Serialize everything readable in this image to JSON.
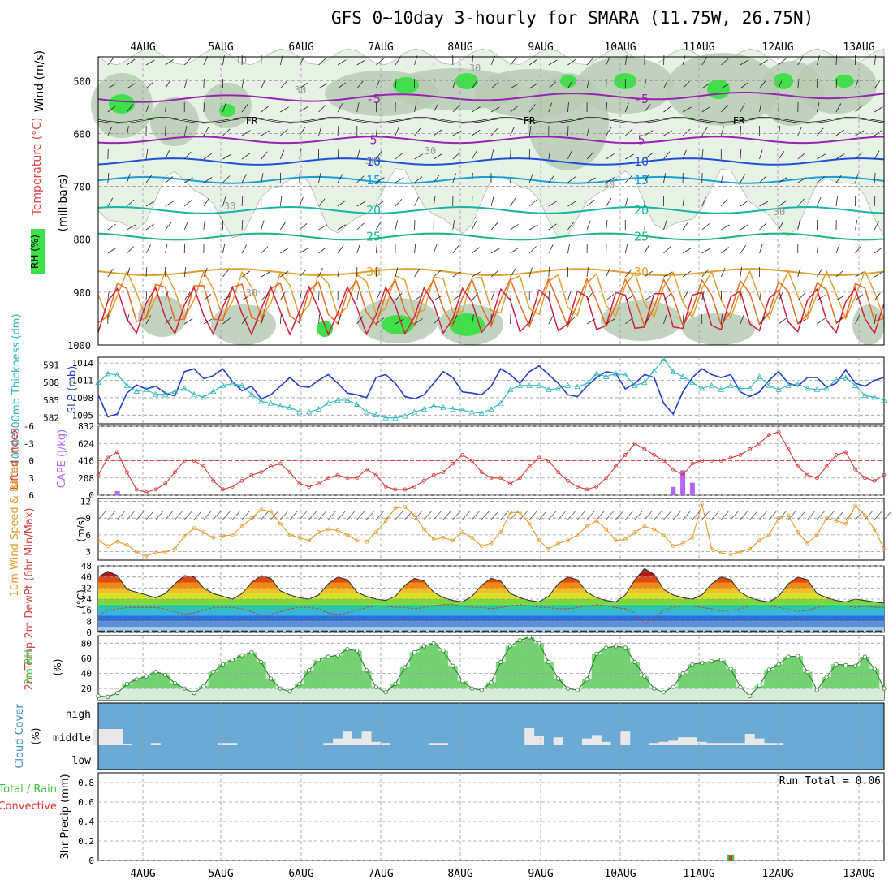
{
  "header": {
    "title": "GFS 0~10day 3-hourly for SMARA (11.75W, 26.75N)"
  },
  "colors": {
    "grid": "#9a9a9a",
    "rh_light": "#e6f2e3",
    "rh_mid": "#b7ccb4",
    "rh_bright": "#3fe04a",
    "slp": "#1f3fc8",
    "thickness": "#2ab5c0",
    "lifted_index": "#d23a3a",
    "cape": "#b266ff",
    "wind_speed": "#e69a2a",
    "cloud": "#6aaad4",
    "cloud_bar": "#e8e8e8",
    "rh2m": "#4ac84a",
    "precip_rain": "#3fbf3f",
    "precip_conv": "#dd3333"
  },
  "chart_data": [
    {
      "id": "upper_air",
      "type": "contour",
      "ylabel": "(millibars)",
      "side_labels": [
        "Wind (m/s)",
        "Temperature (°C)",
        "RH (%)"
      ],
      "yticks": [
        500,
        600,
        700,
        800,
        900,
        1000
      ],
      "ylim": [
        455,
        1000
      ],
      "x_dates": [
        "4AUG",
        "5AUG",
        "6AUG",
        "7AUG",
        "8AUG",
        "9AUG",
        "10AUG",
        "11AUG",
        "12AUG",
        "13AUG"
      ],
      "freezing_label": "FR",
      "temp_levels": [
        {
          "value": -5,
          "label": "-5",
          "color": "#9a22b2",
          "base": 535
        },
        {
          "value": 5,
          "label": "5",
          "color": "#9a22b2",
          "base": 612
        },
        {
          "value": 10,
          "label": "10",
          "color": "#1e4fd8",
          "base": 653
        },
        {
          "value": 15,
          "label": "15",
          "color": "#1aa0d8",
          "base": 688
        },
        {
          "value": 20,
          "label": "20",
          "color": "#17b3a8",
          "base": 745
        },
        {
          "value": 25,
          "label": "25",
          "color": "#18b487",
          "base": 795
        },
        {
          "value": 30,
          "label": "30",
          "color": "#e0a030",
          "base": 862
        }
      ],
      "rh_labels": [
        "10",
        "30",
        "30",
        "30",
        "30",
        "30",
        "30",
        "30",
        "30"
      ]
    },
    {
      "id": "slp_thickness",
      "type": "line",
      "left_axis_label": "1000-500mb Thickness (dm)",
      "right_axis_label": "SLP (mb)",
      "left_ticks": [
        582,
        585,
        588,
        591
      ],
      "left_range": [
        581,
        592.3
      ],
      "right_ticks": [
        1005,
        1008,
        1011,
        1014
      ],
      "right_range": [
        1003.5,
        1015
      ],
      "series": [
        {
          "name": "SLP",
          "values": [
            1008.5,
            1004.7,
            1005.2,
            1008.8,
            1010.2,
            1009.5,
            1010.0,
            1008.8,
            1008.3,
            1012.5,
            1013.0,
            1011.3,
            1011.8,
            1013.0,
            1010.8,
            1009.2,
            1010.0,
            1007.8,
            1008.5,
            1010.0,
            1011.5,
            1010.0,
            1009.8,
            1011.0,
            1012.0,
            1010.5,
            1008.8,
            1008.5,
            1008.0,
            1011.5,
            1012.0,
            1010.5,
            1008.2,
            1007.8,
            1008.5,
            1010.5,
            1012.5,
            1011.5,
            1009.0,
            1008.8,
            1008.5,
            1010.0,
            1013.0,
            1012.0,
            1010.5,
            1012.5,
            1013.5,
            1012.0,
            1010.5,
            1008.5,
            1008.2,
            1010.0,
            1011.5,
            1012.5,
            1012.2,
            1009.5,
            1010.5,
            1012.0,
            1011.5,
            1007.0,
            1005.2,
            1009.0,
            1011.5,
            1013.0,
            1012.0,
            1011.5,
            1012.0,
            1009.0,
            1008.2,
            1009.0,
            1011.0,
            1012.5,
            1010.5,
            1010.0,
            1011.5,
            1011.5,
            1009.8,
            1010.5,
            1012.8,
            1010.5,
            1010.0,
            1011.0,
            1011.5
          ]
        },
        {
          "name": "Thickness",
          "values": [
            588.0,
            589.5,
            589.3,
            587.5,
            586.5,
            586.8,
            586.0,
            586.0,
            586.5,
            587.0,
            586.0,
            585.5,
            586.5,
            587.5,
            587.8,
            587.5,
            586.0,
            584.8,
            584.5,
            584.0,
            583.8,
            583.0,
            583.0,
            583.5,
            584.5,
            585.0,
            585.0,
            584.3,
            583.0,
            582.5,
            582.0,
            582.0,
            582.3,
            583.0,
            583.5,
            584.0,
            583.8,
            583.5,
            583.3,
            583.0,
            582.8,
            583.5,
            584.5,
            586.8,
            587.5,
            587.5,
            587.5,
            586.8,
            587.0,
            587.5,
            587.3,
            587.8,
            589.5,
            589.0,
            589.5,
            589.3,
            587.5,
            588.0,
            590.0,
            592.0,
            589.8,
            589.0,
            588.0,
            587.0,
            587.5,
            586.8,
            587.5,
            587.0,
            587.0,
            589.0,
            587.5,
            586.8,
            587.5,
            587.8,
            587.0,
            586.8,
            587.0,
            588.5,
            588.8,
            587.5,
            585.8,
            585.5,
            585.0
          ]
        }
      ]
    },
    {
      "id": "li_cape",
      "type": "line+bar",
      "left_axis_label": "Lifted Index",
      "right_axis_label": "CAPE (J/kg)",
      "li_ticks": [
        "-6",
        "-3",
        "0",
        "3",
        "6"
      ],
      "li_range": [
        -6,
        6
      ],
      "cape_ticks": [
        "0",
        "208",
        "416",
        "624",
        "832"
      ],
      "cape_range": [
        0,
        832
      ],
      "li_values": [
        2.5,
        -0.5,
        -1.5,
        2.0,
        5.0,
        5.5,
        5.0,
        4.0,
        2.0,
        0.0,
        0.0,
        1.0,
        3.5,
        5.0,
        4.5,
        3.5,
        2.5,
        2.0,
        1.0,
        0.5,
        2.0,
        4.0,
        4.5,
        4.0,
        3.0,
        2.5,
        3.0,
        3.0,
        1.5,
        2.5,
        4.5,
        5.0,
        5.0,
        4.5,
        3.5,
        2.5,
        2.0,
        0.5,
        -1.0,
        0.0,
        2.0,
        3.0,
        3.0,
        4.0,
        3.0,
        1.0,
        -0.5,
        0.0,
        2.0,
        3.5,
        4.5,
        5.0,
        4.5,
        3.0,
        1.0,
        -1.0,
        -3.0,
        -2.0,
        -1.0,
        0.0,
        1.5,
        2.5,
        0.5,
        0.0,
        0.0,
        0.0,
        -0.5,
        -1.0,
        -2.0,
        -3.0,
        -4.5,
        -5.0,
        -2.0,
        1.0,
        2.5,
        3.0,
        1.0,
        -1.0,
        -1.5,
        1.5,
        3.0,
        3.5,
        2.5
      ],
      "cape_values": [
        0,
        0,
        50,
        0,
        0,
        0,
        0,
        0,
        0,
        0,
        0,
        0,
        0,
        0,
        0,
        0,
        0,
        0,
        0,
        0,
        0,
        0,
        0,
        0,
        0,
        0,
        0,
        0,
        0,
        0,
        0,
        0,
        0,
        0,
        0,
        0,
        0,
        0,
        0,
        0,
        0,
        0,
        0,
        0,
        0,
        0,
        0,
        0,
        0,
        0,
        0,
        0,
        0,
        0,
        0,
        0,
        0,
        0,
        0,
        0,
        100,
        300,
        150,
        0,
        0,
        0,
        0,
        0,
        0,
        0,
        0,
        0,
        0,
        0,
        0,
        0,
        0,
        0,
        0,
        0,
        0,
        0,
        0
      ]
    },
    {
      "id": "wind10m",
      "type": "line",
      "left_axis_label": "10m Wind Speed & Barbs",
      "right_axis_label": "(m/s)",
      "ticks": [
        3,
        6,
        9,
        12
      ],
      "range": [
        1.5,
        12.5
      ],
      "values": [
        5.0,
        4.0,
        4.8,
        4.2,
        3.0,
        2.2,
        2.8,
        3.0,
        3.5,
        5.8,
        7.2,
        6.5,
        5.5,
        5.8,
        6.0,
        7.5,
        9.0,
        10.5,
        10.2,
        8.0,
        6.0,
        5.5,
        5.0,
        6.5,
        7.0,
        6.8,
        6.0,
        5.0,
        4.8,
        6.5,
        8.5,
        10.8,
        11.0,
        9.5,
        7.0,
        5.2,
        5.5,
        5.0,
        6.5,
        5.5,
        4.0,
        4.5,
        6.5,
        10.0,
        10.0,
        8.0,
        5.0,
        3.5,
        4.5,
        5.0,
        6.0,
        7.5,
        8.5,
        7.0,
        5.0,
        5.2,
        6.5,
        7.5,
        7.0,
        6.0,
        4.0,
        4.5,
        5.5,
        11.5,
        3.5,
        2.8,
        2.5,
        3.0,
        3.5,
        5.0,
        6.0,
        9.0,
        9.5,
        6.5,
        4.5,
        6.0,
        9.0,
        8.5,
        8.0,
        11.2,
        9.5,
        7.0,
        3.5
      ]
    },
    {
      "id": "temp2m",
      "type": "area",
      "left_axis_label": "2m Temp 2m DewPt (6hr Min/Max)",
      "right_axis_label": "(°C)",
      "ticks": [
        0,
        8,
        16,
        24,
        32,
        40,
        48
      ],
      "range": [
        0,
        48
      ],
      "values": [
        40.0,
        44.0,
        41.0,
        31.0,
        29.0,
        27.0,
        25.0,
        28.0,
        35.0,
        41.0,
        40.0,
        32.0,
        28.0,
        26.0,
        24.0,
        28.0,
        36.0,
        41.0,
        39.0,
        30.0,
        27.0,
        25.0,
        24.0,
        27.0,
        35.0,
        40.0,
        38.0,
        29.0,
        26.0,
        24.0,
        23.0,
        26.0,
        34.0,
        39.0,
        37.0,
        29.0,
        25.0,
        23.0,
        22.0,
        26.0,
        34.0,
        39.0,
        37.0,
        28.0,
        25.0,
        23.0,
        22.0,
        26.0,
        35.0,
        40.0,
        38.0,
        29.0,
        25.0,
        23.0,
        22.0,
        27.0,
        38.0,
        46.0,
        42.0,
        31.0,
        27.0,
        25.0,
        24.0,
        27.0,
        35.0,
        40.0,
        38.0,
        29.0,
        25.0,
        23.0,
        22.0,
        26.0,
        35.0,
        40.0,
        38.0,
        28.0,
        25.0,
        23.0,
        22.0,
        24.0,
        23.0,
        22.0,
        21.0
      ],
      "dewpoint": [
        12.0,
        16.0,
        17.0,
        18.0,
        18.0,
        18.0,
        18.0,
        17.0,
        15.0,
        13.0,
        14.0,
        16.0,
        18.0,
        18.0,
        18.0,
        17.0,
        15.0,
        12.0,
        13.0,
        15.0,
        17.0,
        18.0,
        18.0,
        17.0,
        14.0,
        13.0,
        14.0,
        16.0,
        18.0,
        19.0,
        19.0,
        18.0,
        18.0,
        17.0,
        18.0,
        19.0,
        20.0,
        20.0,
        19.0,
        18.0,
        18.0,
        17.0,
        18.0,
        19.0,
        20.0,
        19.0,
        18.0,
        18.0,
        17.0,
        17.0,
        18.0,
        19.0,
        20.0,
        19.0,
        18.0,
        17.0,
        14.0,
        6.0,
        10.0,
        16.0,
        18.0,
        19.0,
        19.0,
        18.0,
        17.0,
        15.0,
        16.0,
        17.0,
        19.0,
        19.0,
        19.0,
        18.0,
        17.0,
        15.0,
        16.0,
        18.0,
        19.0,
        19.0,
        19.0,
        18.0,
        19.0,
        18.0,
        18.0
      ]
    },
    {
      "id": "rh2m",
      "type": "area",
      "left_axis_label": "2m RH",
      "right_axis_label": "(%)",
      "ticks": [
        20,
        40,
        60,
        80
      ],
      "range": [
        5,
        90
      ],
      "values": [
        10,
        9,
        14,
        26,
        32,
        36,
        42,
        38,
        27,
        20,
        14,
        23,
        42,
        52,
        58,
        64,
        68,
        55,
        33,
        20,
        16,
        26,
        44,
        58,
        62,
        64,
        72,
        70,
        44,
        22,
        15,
        26,
        48,
        68,
        76,
        80,
        70,
        50,
        30,
        20,
        18,
        28,
        55,
        76,
        84,
        88,
        80,
        55,
        33,
        20,
        18,
        32,
        66,
        74,
        76,
        74,
        55,
        36,
        20,
        15,
        22,
        40,
        52,
        54,
        56,
        58,
        46,
        22,
        10,
        24,
        45,
        52,
        62,
        63,
        42,
        18,
        35,
        52,
        51,
        50,
        62,
        46,
        20
      ]
    },
    {
      "id": "cloud",
      "type": "bar",
      "left_axis_label": "Cloud Cover",
      "right_axis_label": "(%)",
      "categories": [
        "low",
        "middle",
        "high"
      ],
      "high_values": [
        0,
        20,
        0,
        0,
        0,
        0,
        0,
        0,
        0,
        0,
        0,
        0,
        0,
        0,
        0,
        0,
        0,
        0,
        0,
        0,
        0,
        0,
        0,
        0,
        0,
        0,
        0,
        0,
        0,
        0,
        0,
        0,
        0,
        0,
        0,
        0,
        0,
        0,
        0,
        0,
        0,
        0,
        0,
        0,
        0,
        0,
        0,
        0,
        0,
        0,
        0,
        0,
        0,
        0,
        0,
        0,
        0,
        0,
        0,
        0,
        0,
        0,
        0,
        0,
        0,
        0,
        0,
        0,
        0,
        0,
        0,
        0,
        0,
        0,
        0,
        0,
        0,
        0,
        0,
        0,
        0,
        0,
        0,
        0
      ],
      "middle_values": [
        70,
        75,
        75,
        0,
        0,
        0,
        0,
        0,
        0,
        0,
        0,
        0,
        0,
        0,
        0,
        0,
        0,
        0,
        0,
        0,
        0,
        0,
        0,
        0,
        0,
        0,
        0,
        0,
        0,
        0,
        0,
        0,
        0,
        0,
        0,
        0,
        0,
        0,
        0,
        0,
        0,
        0,
        0,
        0,
        0,
        0,
        0,
        0,
        0,
        0,
        0,
        0,
        0,
        0,
        0,
        0,
        0,
        0,
        0,
        0,
        0,
        0,
        0,
        0,
        0,
        0,
        0,
        0,
        0,
        0,
        0,
        0,
        0,
        0,
        0,
        0,
        0,
        0,
        0,
        0,
        0,
        0,
        0,
        0
      ],
      "middle_bars": [
        10,
        0,
        10,
        5,
        0,
        0,
        10,
        0,
        0,
        0,
        0,
        0,
        0,
        10,
        10,
        0,
        0,
        0,
        0,
        0,
        0,
        0,
        0,
        0,
        10,
        30,
        60,
        30,
        60,
        15,
        10,
        0,
        0,
        0,
        0,
        10,
        10,
        0,
        0,
        0,
        0,
        0,
        0,
        0,
        0,
        75,
        40,
        0,
        35,
        0,
        0,
        30,
        45,
        15,
        0,
        60,
        0,
        0,
        10,
        15,
        20,
        35,
        35,
        15,
        10,
        10,
        10,
        10,
        50,
        30,
        10,
        10,
        0,
        0,
        0,
        0,
        0,
        0,
        0,
        0,
        0,
        0,
        0
      ]
    },
    {
      "id": "precip",
      "type": "bar",
      "left_axis_label": "Total / Rain Convective",
      "right_axis_label": "3hr Precip (mm)",
      "yticks": [
        "0",
        "0.2",
        "0.4",
        "0.6",
        "0.8"
      ],
      "ylim": [
        0,
        0.9
      ],
      "annotation": "Run Total = 0.06",
      "bars": [
        {
          "index": 66,
          "value": 0.06
        }
      ]
    }
  ]
}
